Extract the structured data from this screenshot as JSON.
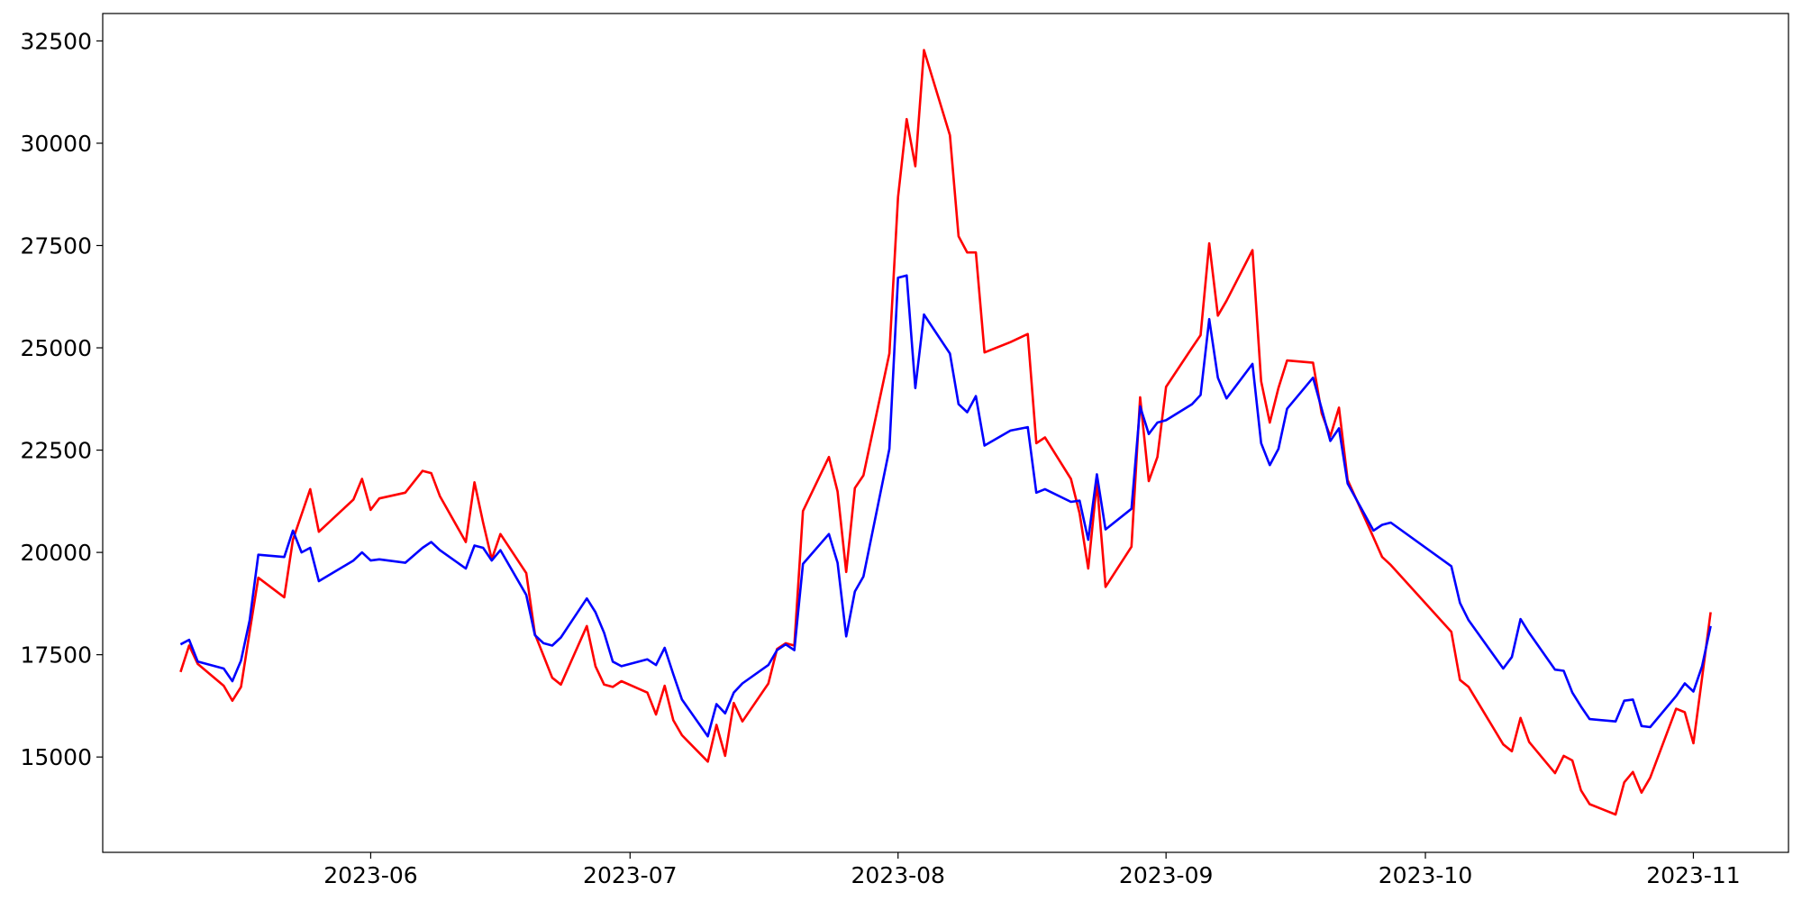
{
  "chart_data": {
    "type": "line",
    "x": [
      "2023-05-10",
      "2023-05-11",
      "2023-05-12",
      "2023-05-15",
      "2023-05-16",
      "2023-05-17",
      "2023-05-18",
      "2023-05-19",
      "2023-05-22",
      "2023-05-23",
      "2023-05-24",
      "2023-05-25",
      "2023-05-26",
      "2023-05-30",
      "2023-05-31",
      "2023-06-01",
      "2023-06-02",
      "2023-06-05",
      "2023-06-07",
      "2023-06-08",
      "2023-06-09",
      "2023-06-12",
      "2023-06-13",
      "2023-06-14",
      "2023-06-15",
      "2023-06-16",
      "2023-06-19",
      "2023-06-20",
      "2023-06-21",
      "2023-06-22",
      "2023-06-23",
      "2023-06-26",
      "2023-06-27",
      "2023-06-28",
      "2023-06-29",
      "2023-06-30",
      "2023-07-03",
      "2023-07-04",
      "2023-07-05",
      "2023-07-06",
      "2023-07-07",
      "2023-07-10",
      "2023-07-11",
      "2023-07-12",
      "2023-07-13",
      "2023-07-14",
      "2023-07-17",
      "2023-07-18",
      "2023-07-19",
      "2023-07-20",
      "2023-07-21",
      "2023-07-24",
      "2023-07-25",
      "2023-07-26",
      "2023-07-27",
      "2023-07-28",
      "2023-07-31",
      "2023-08-01",
      "2023-08-02",
      "2023-08-03",
      "2023-08-04",
      "2023-08-07",
      "2023-08-08",
      "2023-08-09",
      "2023-08-10",
      "2023-08-11",
      "2023-08-14",
      "2023-08-16",
      "2023-08-17",
      "2023-08-18",
      "2023-08-21",
      "2023-08-22",
      "2023-08-23",
      "2023-08-24",
      "2023-08-25",
      "2023-08-28",
      "2023-08-29",
      "2023-08-30",
      "2023-08-31",
      "2023-09-01",
      "2023-09-04",
      "2023-09-05",
      "2023-09-06",
      "2023-09-07",
      "2023-09-08",
      "2023-09-11",
      "2023-09-12",
      "2023-09-13",
      "2023-09-14",
      "2023-09-15",
      "2023-09-18",
      "2023-09-19",
      "2023-09-20",
      "2023-09-21",
      "2023-09-22",
      "2023-09-25",
      "2023-09-26",
      "2023-09-27",
      "2023-10-04",
      "2023-10-05",
      "2023-10-06",
      "2023-10-10",
      "2023-10-11",
      "2023-10-12",
      "2023-10-13",
      "2023-10-16",
      "2023-10-17",
      "2023-10-18",
      "2023-10-19",
      "2023-10-20",
      "2023-10-23",
      "2023-10-24",
      "2023-10-25",
      "2023-10-26",
      "2023-10-27",
      "2023-10-30",
      "2023-10-31",
      "2023-11-01",
      "2023-11-02",
      "2023-11-03"
    ],
    "series": [
      {
        "color": "#ff0000",
        "values": [
          17078,
          17724,
          17275,
          16741,
          16376,
          16713,
          18061,
          19382,
          18904,
          20309,
          20927,
          21545,
          20505,
          21292,
          21797,
          21039,
          21320,
          21460,
          21994,
          21938,
          21376,
          20253,
          21713,
          20730,
          19831,
          20449,
          19494,
          18005,
          17472,
          16938,
          16769,
          18202,
          17219,
          16769,
          16713,
          16854,
          16573,
          16039,
          16741,
          15899,
          15533,
          14887,
          15786,
          15028,
          16320,
          15870,
          16797,
          17640,
          17781,
          17724,
          21011,
          22331,
          21488,
          19522,
          21573,
          21882,
          24859,
          28680,
          30590,
          29438,
          32275,
          30196,
          27724,
          27331,
          27331,
          24887,
          25140,
          25337,
          22668,
          22809,
          21797,
          20955,
          19606,
          21713,
          19157,
          20140,
          23792,
          21741,
          22331,
          24045,
          25000,
          25309,
          27556,
          25786,
          26151,
          27387,
          24185,
          23174,
          24017,
          24691,
          24635,
          23399,
          22837,
          23539,
          21769,
          20365,
          19887,
          19691,
          18061,
          16882,
          16713,
          15309,
          15140,
          15955,
          15365,
          14606,
          15028,
          14915,
          14185,
          13848,
          13595,
          14382,
          14635,
          14129,
          14494,
          16179,
          16095,
          15337,
          16938,
          18539
        ]
      },
      {
        "color": "#0000ff",
        "values": [
          17753,
          17865,
          17331,
          17163,
          16854,
          17359,
          18342,
          19944,
          19887,
          20533,
          20000,
          20112,
          19297,
          19803,
          20000,
          19803,
          19831,
          19747,
          20112,
          20253,
          20056,
          19606,
          20168,
          20112,
          19803,
          20056,
          18960,
          17977,
          17781,
          17724,
          17921,
          18876,
          18539,
          18033,
          17331,
          17219,
          17387,
          17247,
          17668,
          17022,
          16404,
          15505,
          16292,
          16067,
          16573,
          16798,
          17247,
          17612,
          17753,
          17612,
          19719,
          20449,
          19747,
          17949,
          19045,
          19410,
          22528,
          26713,
          26769,
          24017,
          25814,
          24859,
          23623,
          23427,
          23820,
          22612,
          22977,
          23062,
          21460,
          21545,
          21236,
          21264,
          20309,
          21910,
          20562,
          21067,
          23567,
          22893,
          23174,
          23230,
          23623,
          23848,
          25702,
          24269,
          23764,
          24606,
          22668,
          22135,
          22528,
          23511,
          24269,
          23511,
          22724,
          23033,
          21685,
          20533,
          20674,
          20730,
          19663,
          18764,
          18342,
          17163,
          17444,
          18371,
          18033,
          17135,
          17106,
          16573,
          16236,
          15927,
          15870,
          16376,
          16404,
          15758,
          15730,
          16489,
          16798,
          16601,
          17219,
          18202
        ]
      }
    ],
    "xlim": [
      "2023-05-01",
      "2023-11-12"
    ],
    "xticks": [
      "2023-06",
      "2023-07",
      "2023-08",
      "2023-09",
      "2023-10",
      "2023-11"
    ],
    "ylim": [
      12670,
      33170
    ],
    "yticks": [
      15000,
      17500,
      20000,
      22500,
      25000,
      27500,
      30000,
      32500
    ]
  }
}
